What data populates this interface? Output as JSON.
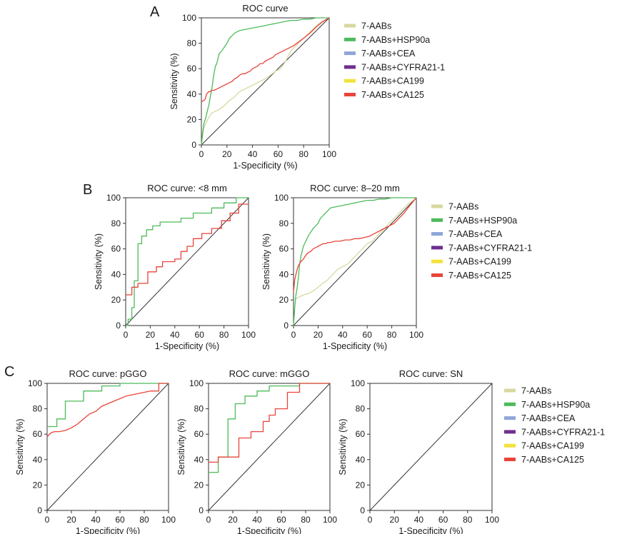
{
  "chart_data": [
    {
      "type": "line",
      "panel_label": "A",
      "title": "ROC curve",
      "xlabel": "1-Specificity (%)",
      "ylabel": "Sensitivity (%)",
      "xlim": [
        0,
        100
      ],
      "ylim": [
        0,
        100
      ],
      "xticks": [
        "0",
        "20",
        "40",
        "60",
        "80",
        "100"
      ],
      "yticks": [
        "0",
        "20",
        "40",
        "60",
        "80",
        "100"
      ],
      "legend": "right",
      "series": [
        {
          "name": "7-AABs",
          "color": "#d8d8a0",
          "x": [
            0,
            2,
            4,
            6,
            8,
            10,
            14,
            18,
            22,
            26,
            30,
            34,
            38,
            42,
            46,
            50,
            54,
            58,
            62,
            66,
            70,
            76,
            82,
            88,
            94,
            100
          ],
          "y": [
            0,
            14,
            18,
            22,
            25,
            26,
            28,
            31,
            35,
            38,
            42,
            44,
            46,
            48,
            50,
            52,
            55,
            58,
            60,
            66,
            74,
            80,
            86,
            92,
            97,
            100
          ]
        },
        {
          "name": "7-AABs+HSP90a",
          "color": "#4cbb5a",
          "x": [
            0,
            1,
            2,
            3,
            4,
            5,
            6,
            7,
            8,
            9,
            10,
            11,
            12,
            13,
            14,
            16,
            18,
            20,
            22,
            24,
            26,
            28,
            30,
            35,
            40,
            45,
            50,
            55,
            60,
            65,
            70,
            75,
            80,
            85,
            90,
            95,
            100
          ],
          "y": [
            0,
            10,
            17,
            20,
            24,
            28,
            32,
            38,
            43,
            50,
            57,
            62,
            64,
            68,
            72,
            74,
            77,
            80,
            84,
            86,
            88,
            89,
            90,
            91,
            92,
            93,
            94,
            95,
            96,
            97,
            98,
            98,
            99,
            99,
            100,
            100,
            100
          ]
        },
        {
          "name": "7-AABs+CEA",
          "color": "#8fa6d8",
          "x": [],
          "y": []
        },
        {
          "name": "7-AABs+CYFRA21-1",
          "color": "#6f2e8e",
          "x": [],
          "y": []
        },
        {
          "name": "7-AABs+CA199",
          "color": "#f2e33b",
          "x": [],
          "y": []
        },
        {
          "name": "7-AABs+CA125",
          "color": "#e8443a",
          "x": [
            0,
            2,
            3,
            4,
            5,
            6,
            7,
            8,
            10,
            12,
            14,
            16,
            18,
            20,
            22,
            24,
            26,
            28,
            30,
            32,
            34,
            36,
            38,
            40,
            42,
            44,
            46,
            48,
            50,
            52,
            54,
            56,
            58,
            60,
            64,
            68,
            72,
            76,
            80,
            85,
            90,
            95,
            100
          ],
          "y": [
            34,
            35,
            36,
            40,
            41,
            42,
            42,
            43,
            43,
            44,
            45,
            46,
            47,
            48,
            49,
            50,
            52,
            53,
            55,
            56,
            56,
            57,
            58,
            60,
            61,
            62,
            64,
            64,
            66,
            67,
            68,
            69,
            71,
            72,
            74,
            76,
            78,
            81,
            84,
            88,
            93,
            97,
            100
          ]
        }
      ]
    },
    {
      "type": "line",
      "panel_label": "B",
      "title": "ROC curve: <8 mm",
      "xlabel": "1-Specificity (%)",
      "ylabel": "Sensitivity (%)",
      "xlim": [
        0,
        100
      ],
      "ylim": [
        0,
        100
      ],
      "xticks": [
        "0",
        "20",
        "40",
        "60",
        "80",
        "100"
      ],
      "yticks": [
        "0",
        "20",
        "40",
        "60",
        "80",
        "100"
      ],
      "series": [
        {
          "name": "7-AABs+HSP90a",
          "color": "#4cbb5a",
          "x": [
            0,
            2,
            2,
            5,
            5,
            7,
            7,
            10,
            10,
            13,
            13,
            17,
            17,
            22,
            22,
            28,
            28,
            45,
            45,
            55,
            55,
            70,
            70,
            80,
            80,
            90,
            90,
            100
          ],
          "y": [
            0,
            0,
            5,
            5,
            14,
            14,
            35,
            35,
            64,
            64,
            70,
            70,
            75,
            75,
            78,
            78,
            81,
            81,
            84,
            84,
            88,
            88,
            92,
            92,
            96,
            96,
            100,
            100
          ]
        },
        {
          "name": "7-AABs+CA125",
          "color": "#e8443a",
          "x": [
            0,
            5,
            5,
            10,
            10,
            18,
            18,
            25,
            25,
            30,
            30,
            40,
            40,
            45,
            45,
            50,
            50,
            55,
            55,
            62,
            62,
            70,
            70,
            78,
            78,
            85,
            85,
            92,
            92,
            100
          ],
          "y": [
            24,
            24,
            30,
            30,
            33,
            33,
            42,
            42,
            46,
            46,
            50,
            50,
            52,
            52,
            58,
            58,
            62,
            62,
            68,
            68,
            72,
            72,
            76,
            76,
            82,
            82,
            88,
            88,
            95,
            95
          ]
        }
      ]
    },
    {
      "type": "line",
      "panel_label": "",
      "title": "ROC curve: 8–20 mm",
      "xlabel": "1-Specificity (%)",
      "ylabel": "Sensitivity (%)",
      "xlim": [
        0,
        100
      ],
      "ylim": [
        0,
        100
      ],
      "xticks": [
        "0",
        "20",
        "40",
        "60",
        "80",
        "100"
      ],
      "yticks": [
        "0",
        "20",
        "40",
        "60",
        "80",
        "100"
      ],
      "legend": "right",
      "series": [
        {
          "name": "7-AABs",
          "color": "#d8d8a0",
          "x": [
            0,
            4,
            8,
            12,
            16,
            20,
            24,
            28,
            32,
            36,
            40,
            44,
            48,
            52,
            56,
            60,
            64,
            68,
            72,
            76,
            80,
            84,
            88,
            92,
            96,
            100
          ],
          "y": [
            20,
            22,
            24,
            25,
            27,
            30,
            33,
            36,
            40,
            44,
            46,
            48,
            52,
            56,
            60,
            64,
            66,
            70,
            74,
            78,
            82,
            86,
            90,
            94,
            97,
            100
          ]
        },
        {
          "name": "7-AABs+HSP90a",
          "color": "#4cbb5a",
          "x": [
            0,
            1,
            2,
            3,
            4,
            5,
            6,
            7,
            8,
            9,
            10,
            12,
            14,
            16,
            18,
            20,
            22,
            24,
            26,
            28,
            30,
            35,
            40,
            45,
            50,
            55,
            60,
            65,
            70,
            75,
            80,
            85,
            90,
            95,
            100
          ],
          "y": [
            0,
            14,
            24,
            30,
            38,
            48,
            54,
            58,
            62,
            64,
            66,
            70,
            73,
            76,
            78,
            80,
            84,
            86,
            88,
            90,
            92,
            93,
            94,
            95,
            96,
            97,
            98,
            98,
            99,
            99,
            100,
            100,
            100,
            100,
            100
          ]
        },
        {
          "name": "7-AABs+CEA",
          "color": "#8fa6d8",
          "x": [],
          "y": []
        },
        {
          "name": "7-AABs+CYFRA21-1",
          "color": "#6f2e8e",
          "x": [],
          "y": []
        },
        {
          "name": "7-AABs+CA199",
          "color": "#f2e33b",
          "x": [],
          "y": []
        },
        {
          "name": "7-AABs+CA125",
          "color": "#e8443a",
          "x": [
            0,
            1,
            2,
            3,
            4,
            6,
            8,
            10,
            12,
            14,
            16,
            18,
            20,
            22,
            24,
            26,
            28,
            30,
            34,
            38,
            42,
            46,
            50,
            54,
            58,
            62,
            66,
            70,
            74,
            78,
            82,
            86,
            90,
            94,
            100
          ],
          "y": [
            26,
            36,
            40,
            44,
            47,
            50,
            52,
            55,
            57,
            58,
            60,
            61,
            62,
            63,
            64,
            64,
            65,
            65,
            66,
            66,
            67,
            67,
            68,
            68,
            69,
            70,
            72,
            74,
            76,
            78,
            80,
            84,
            88,
            93,
            100
          ]
        }
      ]
    },
    {
      "type": "line",
      "panel_label": "C",
      "title": "ROC curve: pGGO",
      "xlabel": "1-Specificity (%)",
      "ylabel": "Sensitivity (%)",
      "xlim": [
        0,
        100
      ],
      "ylim": [
        0,
        100
      ],
      "xticks": [
        "0",
        "20",
        "40",
        "60",
        "80",
        "100"
      ],
      "yticks": [
        "0",
        "20",
        "40",
        "60",
        "80",
        "100"
      ],
      "series": [
        {
          "name": "7-AABs+HSP90a",
          "color": "#4cbb5a",
          "x": [
            0,
            8,
            8,
            15,
            15,
            30,
            30,
            45,
            45,
            60,
            60,
            100
          ],
          "y": [
            66,
            66,
            72,
            72,
            86,
            86,
            94,
            94,
            98,
            98,
            100,
            100
          ]
        },
        {
          "name": "7-AABs+CA125",
          "color": "#e8443a",
          "x": [
            0,
            3,
            6,
            10,
            15,
            20,
            25,
            30,
            35,
            40,
            45,
            50,
            55,
            60,
            65,
            70,
            75,
            80,
            85,
            92,
            92,
            100
          ],
          "y": [
            58,
            61,
            62,
            62,
            63,
            65,
            68,
            72,
            76,
            78,
            82,
            84,
            86,
            88,
            90,
            91,
            92,
            93,
            94,
            94,
            100,
            100
          ]
        }
      ]
    },
    {
      "type": "line",
      "panel_label": "",
      "title": "ROC curve: mGGO",
      "xlabel": "1-Specificity (%)",
      "ylabel": "Sensitivity (%)",
      "xlim": [
        0,
        100
      ],
      "ylim": [
        0,
        100
      ],
      "xticks": [
        "0",
        "20",
        "40",
        "60",
        "80",
        "100"
      ],
      "yticks": [
        "0",
        "20",
        "40",
        "60",
        "80",
        "100"
      ],
      "series": [
        {
          "name": "7-AABs+HSP90a",
          "color": "#4cbb5a",
          "x": [
            0,
            8,
            8,
            16,
            16,
            22,
            22,
            30,
            30,
            40,
            40,
            50,
            50,
            75,
            75,
            100
          ],
          "y": [
            30,
            30,
            42,
            42,
            72,
            72,
            84,
            84,
            90,
            90,
            94,
            94,
            98,
            98,
            100,
            100
          ]
        },
        {
          "name": "7-AABs+CA125",
          "color": "#e8443a",
          "x": [
            0,
            8,
            8,
            25,
            25,
            35,
            35,
            45,
            45,
            50,
            50,
            55,
            55,
            65,
            65,
            75,
            75,
            100
          ],
          "y": [
            38,
            38,
            42,
            42,
            57,
            57,
            62,
            62,
            70,
            70,
            75,
            75,
            80,
            80,
            93,
            93,
            100,
            100
          ]
        }
      ]
    },
    {
      "type": "line",
      "panel_label": "",
      "title": "ROC curve: SN",
      "xlabel": "1-Specificity (%)",
      "ylabel": "Sensitivity (%)",
      "xlim": [
        0,
        100
      ],
      "ylim": [
        0,
        100
      ],
      "xticks": [
        "0",
        "20",
        "40",
        "60",
        "80",
        "100"
      ],
      "yticks": [
        "0",
        "20",
        "40",
        "60",
        "80",
        "100"
      ],
      "legend": "right",
      "series": [
        {
          "name": "7-AABs",
          "color": "#d8d8a0",
          "x": [],
          "y": []
        },
        {
          "name": "7-AABs+HSP90a",
          "color": "#4cbb5a",
          "x": [],
          "y": []
        },
        {
          "name": "7-AABs+CEA",
          "color": "#8fa6d8",
          "x": [],
          "y": []
        },
        {
          "name": "7-AABs+CYFRA21-1",
          "color": "#6f2e8e",
          "x": [],
          "y": []
        },
        {
          "name": "7-AABs+CA199",
          "color": "#f2e33b",
          "x": [],
          "y": []
        },
        {
          "name": "7-AABs+CA125",
          "color": "#e8443a",
          "x": [],
          "y": []
        }
      ]
    }
  ]
}
